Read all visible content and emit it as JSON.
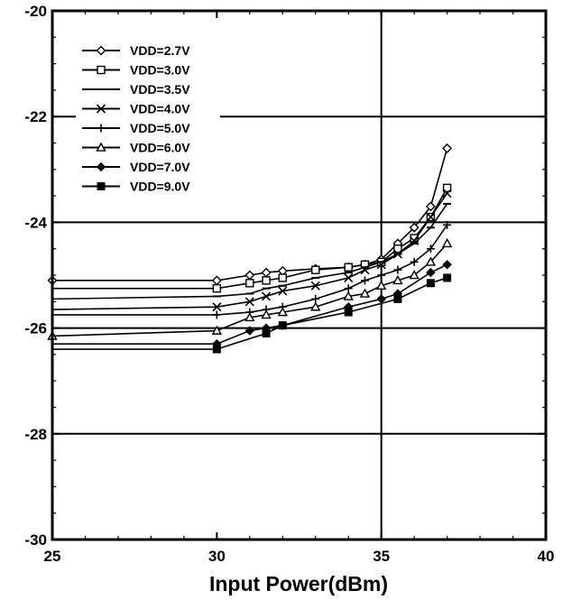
{
  "chart_data": {
    "type": "line",
    "title": "",
    "xlabel": "Input Power(dBm)",
    "ylabel": "",
    "xlim": [
      25,
      40
    ],
    "ylim": [
      -30,
      -20
    ],
    "xticks": [
      25,
      30,
      35,
      40
    ],
    "yticks": [
      -30,
      -28,
      -26,
      -24,
      -22,
      -20
    ],
    "xtick_labels": [
      "25",
      "30",
      "35",
      "40"
    ],
    "ytick_labels": [
      "-30",
      "-28",
      "-26",
      "-24",
      "-22",
      "-20"
    ],
    "grid": "major lines at x=35 and y=-22, -24, -26, -28",
    "legend_position": "top-left",
    "series": [
      {
        "name": "VDD=2.7V",
        "marker": "diamond-open",
        "x": [
          25,
          30,
          31,
          31.5,
          32,
          33,
          34,
          34.5,
          35,
          35.5,
          36,
          36.5,
          37
        ],
        "y": [
          -25.1,
          -25.1,
          -25.0,
          -24.95,
          -24.92,
          -24.88,
          -24.85,
          -24.8,
          -24.7,
          -24.4,
          -24.1,
          -23.7,
          -22.6
        ]
      },
      {
        "name": "VDD=3.0V",
        "marker": "square-open",
        "x": [
          25,
          30,
          31,
          31.5,
          32,
          33,
          34,
          34.5,
          35,
          35.5,
          36,
          36.5,
          37
        ],
        "y": [
          -25.25,
          -25.25,
          -25.15,
          -25.1,
          -25.05,
          -24.9,
          -24.85,
          -24.8,
          -24.75,
          -24.5,
          -24.3,
          -23.9,
          -23.35
        ]
      },
      {
        "name": "VDD=3.5V",
        "marker": "dash",
        "x": [
          25,
          30,
          31,
          31.5,
          32,
          33,
          34,
          34.5,
          35,
          35.5,
          36,
          36.5,
          37
        ],
        "y": [
          -25.45,
          -25.4,
          -25.35,
          -25.25,
          -25.2,
          -25.05,
          -24.95,
          -24.85,
          -24.75,
          -24.6,
          -24.4,
          -24.1,
          -23.65
        ]
      },
      {
        "name": "VDD=4.0V",
        "marker": "x",
        "x": [
          25,
          30,
          31,
          31.5,
          32,
          33,
          34,
          34.5,
          35,
          35.5,
          36,
          36.5,
          37
        ],
        "y": [
          -25.65,
          -25.6,
          -25.5,
          -25.4,
          -25.3,
          -25.2,
          -25.05,
          -24.9,
          -24.8,
          -24.6,
          -24.35,
          -23.9,
          -23.45
        ]
      },
      {
        "name": "VDD=5.0V",
        "marker": "plus",
        "x": [
          25,
          30,
          31,
          31.5,
          32,
          33,
          34,
          34.5,
          35,
          35.5,
          36,
          36.5,
          37
        ],
        "y": [
          -25.75,
          -25.75,
          -25.7,
          -25.65,
          -25.6,
          -25.45,
          -25.25,
          -25.1,
          -25.0,
          -24.9,
          -24.75,
          -24.5,
          -24.05
        ]
      },
      {
        "name": "VDD=6.0V",
        "marker": "triangle-open",
        "x": [
          25,
          30,
          31,
          31.5,
          32,
          33,
          34,
          34.5,
          35,
          35.5,
          36,
          36.5,
          37
        ],
        "y": [
          -26.15,
          -26.05,
          -25.8,
          -25.75,
          -25.7,
          -25.6,
          -25.4,
          -25.35,
          -25.2,
          -25.1,
          -25.0,
          -24.75,
          -24.4
        ]
      },
      {
        "name": "VDD=7.0V",
        "marker": "circle-filled",
        "x": [
          25,
          30,
          31,
          31.5,
          32,
          34,
          35,
          35.5,
          36.5,
          37
        ],
        "y": [
          -26.3,
          -26.3,
          -26.05,
          -26.0,
          -25.95,
          -25.6,
          -25.45,
          -25.35,
          -24.95,
          -24.8
        ]
      },
      {
        "name": "VDD=9.0V",
        "marker": "square-filled",
        "x": [
          25,
          30,
          31.5,
          32,
          34,
          35.5,
          36.5,
          37
        ],
        "y": [
          -26.4,
          -26.4,
          -26.1,
          -25.95,
          -25.7,
          -25.45,
          -25.15,
          -25.05
        ]
      }
    ]
  }
}
